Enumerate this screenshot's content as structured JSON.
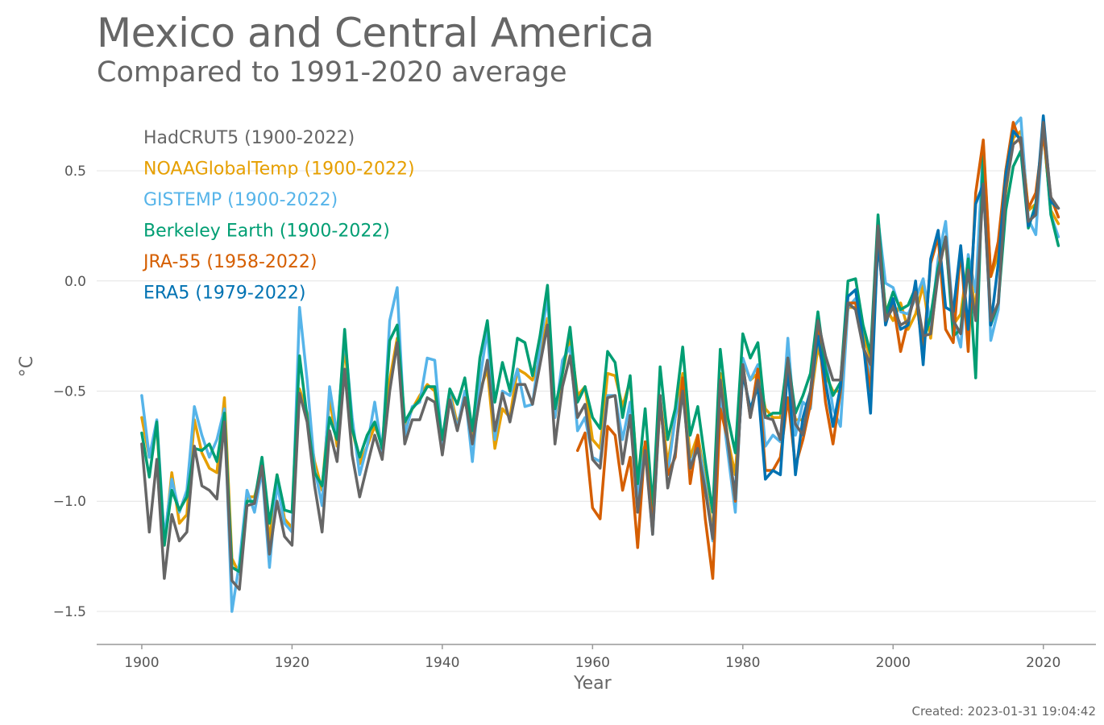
{
  "title": "Mexico and Central America",
  "subtitle": "Compared to 1991-2020 average",
  "created": "Created: 2023-01-31 19:04:42",
  "chart_data": {
    "type": "line",
    "xlabel": "Year",
    "ylabel": "°C",
    "xlim": [
      1894,
      2027
    ],
    "ylim": [
      -1.65,
      0.8
    ],
    "xticks": [
      1900,
      1920,
      1940,
      1960,
      1980,
      2000,
      2020
    ],
    "xtick_labels": [
      "1900",
      "1920",
      "1940",
      "1960",
      "1980",
      "2000",
      "2020"
    ],
    "yticks": [
      0.5,
      0.0,
      -0.5,
      -1.0,
      -1.5
    ],
    "ytick_labels": [
      "0.5",
      "0.0",
      "−0.5",
      "−1.0",
      "−1.5"
    ],
    "grid": "horizontal",
    "legend_position": "top-left",
    "series": [
      {
        "name": "NOAAGlobalTemp (1900-2022)",
        "color": "#E69F00",
        "x_start": 1900,
        "values": [
          -0.62,
          -0.8,
          -0.66,
          -1.2,
          -0.87,
          -1.1,
          -1.06,
          -0.63,
          -0.78,
          -0.85,
          -0.87,
          -0.53,
          -1.26,
          -1.33,
          -0.98,
          -0.98,
          -0.85,
          -1.18,
          -0.88,
          -1.08,
          -1.12,
          -0.49,
          -0.6,
          -0.82,
          -0.95,
          -0.53,
          -0.75,
          -0.29,
          -0.67,
          -0.83,
          -0.75,
          -0.66,
          -0.74,
          -0.45,
          -0.26,
          -0.67,
          -0.58,
          -0.52,
          -0.47,
          -0.5,
          -0.76,
          -0.5,
          -0.65,
          -0.54,
          -0.7,
          -0.5,
          -0.4,
          -0.76,
          -0.58,
          -0.62,
          -0.4,
          -0.42,
          -0.45,
          -0.35,
          -0.17,
          -0.62,
          -0.42,
          -0.25,
          -0.52,
          -0.48,
          -0.72,
          -0.76,
          -0.42,
          -0.43,
          -0.57,
          -0.45,
          -0.9,
          -0.74,
          -1.08,
          -0.53,
          -0.83,
          -0.62,
          -0.42,
          -0.8,
          -0.7,
          -0.9,
          -1.15,
          -0.42,
          -0.72,
          -0.88,
          -0.36,
          -0.45,
          -0.42,
          -0.58,
          -0.62,
          -0.62,
          -0.42,
          -0.63,
          -0.63,
          -0.55,
          -0.3,
          -0.43,
          -0.5,
          -0.5,
          -0.12,
          -0.12,
          -0.25,
          -0.35,
          0.18,
          -0.12,
          -0.18,
          -0.1,
          -0.22,
          -0.15,
          -0.02,
          -0.26,
          0.06,
          0.18,
          -0.2,
          -0.15,
          0.1,
          -0.15,
          0.62,
          0.02,
          0.12,
          0.4,
          0.65,
          0.68,
          0.32,
          0.35,
          0.68,
          0.32,
          0.26
        ]
      },
      {
        "name": "GISTEMP (1900-2022)",
        "color": "#56B4E9",
        "x_start": 1900,
        "values": [
          -0.52,
          -0.8,
          -0.63,
          -1.17,
          -0.9,
          -1.05,
          -0.95,
          -0.57,
          -0.7,
          -0.8,
          -0.72,
          -0.58,
          -1.5,
          -1.28,
          -0.95,
          -1.05,
          -0.86,
          -1.3,
          -0.92,
          -1.1,
          -1.14,
          -0.12,
          -0.45,
          -0.85,
          -1.02,
          -0.48,
          -0.7,
          -0.25,
          -0.62,
          -0.88,
          -0.75,
          -0.55,
          -0.78,
          -0.18,
          -0.03,
          -0.7,
          -0.57,
          -0.55,
          -0.35,
          -0.36,
          -0.75,
          -0.52,
          -0.67,
          -0.5,
          -0.82,
          -0.45,
          -0.22,
          -0.72,
          -0.5,
          -0.52,
          -0.4,
          -0.57,
          -0.56,
          -0.3,
          -0.07,
          -0.62,
          -0.36,
          -0.3,
          -0.68,
          -0.62,
          -0.8,
          -0.82,
          -0.52,
          -0.52,
          -0.72,
          -0.55,
          -0.98,
          -0.75,
          -1.15,
          -0.55,
          -0.88,
          -0.62,
          -0.48,
          -0.85,
          -0.72,
          -0.92,
          -1.18,
          -0.5,
          -0.78,
          -1.05,
          -0.35,
          -0.45,
          -0.38,
          -0.75,
          -0.7,
          -0.73,
          -0.26,
          -0.7,
          -0.55,
          -0.58,
          -0.2,
          -0.35,
          -0.58,
          -0.66,
          -0.12,
          -0.08,
          -0.3,
          -0.43,
          0.28,
          -0.01,
          -0.03,
          -0.14,
          -0.15,
          -0.08,
          0.01,
          -0.2,
          0.1,
          0.27,
          -0.18,
          -0.3,
          0.12,
          -0.05,
          0.62,
          -0.27,
          -0.13,
          0.5,
          0.7,
          0.74,
          0.28,
          0.21,
          0.72,
          0.3,
          0.2
        ]
      },
      {
        "name": "Berkeley Earth (1900-2022)",
        "color": "#009E73",
        "x_start": 1900,
        "values": [
          -0.69,
          -0.89,
          -0.64,
          -1.2,
          -0.95,
          -1.04,
          -0.98,
          -0.76,
          -0.77,
          -0.74,
          -0.82,
          -0.6,
          -1.3,
          -1.32,
          -1.0,
          -1.0,
          -0.8,
          -1.1,
          -0.88,
          -1.04,
          -1.05,
          -0.34,
          -0.62,
          -0.87,
          -0.93,
          -0.62,
          -0.72,
          -0.22,
          -0.67,
          -0.8,
          -0.7,
          -0.64,
          -0.76,
          -0.27,
          -0.2,
          -0.64,
          -0.58,
          -0.54,
          -0.48,
          -0.48,
          -0.72,
          -0.49,
          -0.56,
          -0.44,
          -0.68,
          -0.35,
          -0.18,
          -0.55,
          -0.37,
          -0.5,
          -0.26,
          -0.28,
          -0.43,
          -0.25,
          -0.02,
          -0.58,
          -0.42,
          -0.21,
          -0.55,
          -0.48,
          -0.62,
          -0.67,
          -0.32,
          -0.37,
          -0.62,
          -0.43,
          -0.92,
          -0.58,
          -1.03,
          -0.39,
          -0.72,
          -0.58,
          -0.3,
          -0.7,
          -0.57,
          -0.82,
          -1.05,
          -0.31,
          -0.62,
          -0.78,
          -0.24,
          -0.35,
          -0.28,
          -0.62,
          -0.6,
          -0.6,
          -0.35,
          -0.6,
          -0.52,
          -0.42,
          -0.14,
          -0.4,
          -0.52,
          -0.46,
          0.0,
          0.01,
          -0.2,
          -0.33,
          0.3,
          -0.15,
          -0.05,
          -0.13,
          -0.11,
          -0.03,
          -0.28,
          -0.16,
          0.06,
          0.2,
          -0.25,
          -0.22,
          0.1,
          -0.44,
          0.6,
          -0.2,
          -0.1,
          0.32,
          0.52,
          0.59,
          0.24,
          0.35,
          0.7,
          0.3,
          0.16
        ]
      },
      {
        "name": "JRA-55 (1958-2022)",
        "color": "#D55E00",
        "x_start": 1958,
        "values": [
          -0.77,
          -0.69,
          -1.03,
          -1.08,
          -0.66,
          -0.7,
          -0.95,
          -0.8,
          -1.21,
          -0.73,
          -1.12,
          -0.55,
          -0.88,
          -0.8,
          -0.44,
          -0.92,
          -0.7,
          -1.08,
          -1.35,
          -0.58,
          -0.72,
          -1.0,
          -0.38,
          -0.62,
          -0.4,
          -0.86,
          -0.86,
          -0.8,
          -0.53,
          -0.84,
          -0.72,
          -0.56,
          -0.2,
          -0.55,
          -0.74,
          -0.5,
          -0.1,
          -0.1,
          -0.28,
          -0.5,
          0.18,
          -0.18,
          -0.1,
          -0.32,
          -0.18,
          -0.05,
          -0.33,
          0.08,
          0.2,
          -0.22,
          -0.28,
          0.15,
          -0.32,
          0.4,
          0.64,
          0.02,
          0.18,
          0.5,
          0.72,
          0.62,
          0.33,
          0.4,
          0.67,
          0.38,
          0.29
        ]
      },
      {
        "name": "ERA5 (1979-2022)",
        "color": "#0072B2",
        "x_start": 1979,
        "values": [
          -0.95,
          -0.42,
          -0.58,
          -0.48,
          -0.9,
          -0.86,
          -0.88,
          -0.38,
          -0.88,
          -0.62,
          -0.5,
          -0.25,
          -0.46,
          -0.66,
          -0.48,
          -0.07,
          -0.04,
          -0.27,
          -0.6,
          0.2,
          -0.2,
          -0.08,
          -0.22,
          -0.2,
          0.0,
          -0.38,
          0.1,
          0.23,
          -0.12,
          -0.14,
          0.16,
          -0.22,
          0.35,
          0.44,
          -0.2,
          0.08,
          0.48,
          0.68,
          0.64,
          0.25,
          0.33,
          0.75,
          0.36,
          0.33
        ]
      },
      {
        "name": "HadCRUT5 (1900-2022)",
        "color": "#666666",
        "x_start": 1900,
        "values": [
          -0.74,
          -1.14,
          -0.81,
          -1.35,
          -1.06,
          -1.18,
          -1.14,
          -0.75,
          -0.93,
          -0.95,
          -0.99,
          -0.64,
          -1.36,
          -1.4,
          -1.02,
          -1.01,
          -0.84,
          -1.24,
          -1.0,
          -1.16,
          -1.2,
          -0.51,
          -0.64,
          -0.93,
          -1.14,
          -0.68,
          -0.82,
          -0.4,
          -0.79,
          -0.98,
          -0.84,
          -0.7,
          -0.81,
          -0.5,
          -0.28,
          -0.74,
          -0.63,
          -0.63,
          -0.53,
          -0.55,
          -0.79,
          -0.54,
          -0.68,
          -0.53,
          -0.74,
          -0.53,
          -0.36,
          -0.68,
          -0.51,
          -0.64,
          -0.47,
          -0.47,
          -0.56,
          -0.38,
          -0.2,
          -0.74,
          -0.48,
          -0.34,
          -0.62,
          -0.56,
          -0.81,
          -0.85,
          -0.53,
          -0.52,
          -0.83,
          -0.61,
          -1.05,
          -0.77,
          -1.15,
          -0.52,
          -0.94,
          -0.78,
          -0.5,
          -0.85,
          -0.76,
          -0.95,
          -1.17,
          -0.45,
          -0.73,
          -0.99,
          -0.38,
          -0.62,
          -0.45,
          -0.62,
          -0.63,
          -0.72,
          -0.35,
          -0.65,
          -0.7,
          -0.5,
          -0.18,
          -0.34,
          -0.45,
          -0.45,
          -0.1,
          -0.13,
          -0.3,
          -0.38,
          0.25,
          -0.18,
          -0.12,
          -0.2,
          -0.18,
          -0.05,
          -0.25,
          -0.24,
          0.03,
          0.2,
          -0.18,
          -0.24,
          0.05,
          -0.18,
          0.44,
          -0.18,
          -0.1,
          0.42,
          0.62,
          0.65,
          0.27,
          0.3,
          0.72,
          0.38,
          0.33
        ]
      }
    ]
  }
}
